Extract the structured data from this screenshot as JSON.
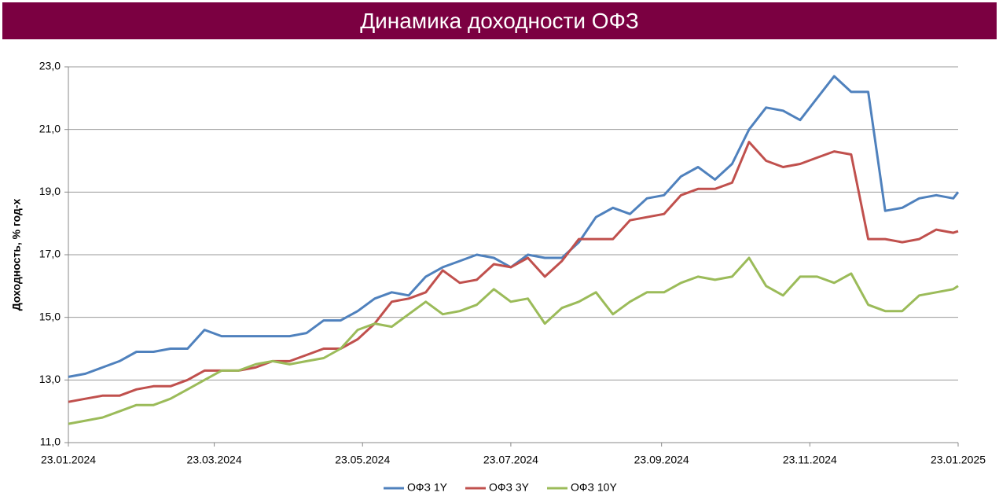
{
  "chart_data": {
    "type": "line",
    "title": "Динамика доходности ОФЗ",
    "y_label": "Доходность, % год-х",
    "x": [
      "23.01.2024",
      "30.01.2024",
      "06.02.2024",
      "13.02.2024",
      "20.02.2024",
      "27.02.2024",
      "05.03.2024",
      "12.03.2024",
      "19.03.2024",
      "26.03.2024",
      "02.04.2024",
      "09.04.2024",
      "16.04.2024",
      "23.04.2024",
      "30.04.2024",
      "07.05.2024",
      "14.05.2024",
      "21.05.2024",
      "28.05.2024",
      "04.06.2024",
      "11.06.2024",
      "18.06.2024",
      "25.06.2024",
      "02.07.2024",
      "09.07.2024",
      "16.07.2024",
      "23.07.2024",
      "30.07.2024",
      "06.08.2024",
      "13.08.2024",
      "20.08.2024",
      "27.08.2024",
      "03.09.2024",
      "10.09.2024",
      "17.09.2024",
      "24.09.2024",
      "01.10.2024",
      "08.10.2024",
      "15.10.2024",
      "22.10.2024",
      "29.10.2024",
      "05.11.2024",
      "12.11.2024",
      "19.11.2024",
      "26.11.2024",
      "03.12.2024",
      "10.12.2024",
      "17.12.2024",
      "24.12.2024",
      "31.12.2024",
      "07.01.2025",
      "14.01.2025",
      "21.01.2025",
      "23.01.2025"
    ],
    "series": [
      {
        "name": "ОФЗ 1Y",
        "color": "#4f81bd",
        "values": [
          13.1,
          13.2,
          13.4,
          13.6,
          13.9,
          13.9,
          14.0,
          14.0,
          14.6,
          14.4,
          14.4,
          14.4,
          14.4,
          14.4,
          14.5,
          14.9,
          14.9,
          15.2,
          15.6,
          15.8,
          15.7,
          16.3,
          16.6,
          16.8,
          17.0,
          16.9,
          16.6,
          17.0,
          16.9,
          16.9,
          17.4,
          18.2,
          18.5,
          18.3,
          18.8,
          18.9,
          19.5,
          19.8,
          19.4,
          19.9,
          21.0,
          21.7,
          21.6,
          21.3,
          22.0,
          22.7,
          22.2,
          22.2,
          18.4,
          18.5,
          18.8,
          18.9,
          18.8,
          19.0
        ]
      },
      {
        "name": "ОФЗ 3Y",
        "color": "#c0504d",
        "values": [
          12.3,
          12.4,
          12.5,
          12.5,
          12.7,
          12.8,
          12.8,
          13.0,
          13.3,
          13.3,
          13.3,
          13.4,
          13.6,
          13.6,
          13.8,
          14.0,
          14.0,
          14.3,
          14.8,
          15.5,
          15.6,
          15.8,
          16.5,
          16.1,
          16.2,
          16.7,
          16.6,
          16.9,
          16.3,
          16.8,
          17.5,
          17.5,
          17.5,
          18.1,
          18.2,
          18.3,
          18.9,
          19.1,
          19.1,
          19.3,
          20.6,
          20.0,
          19.8,
          19.9,
          20.1,
          20.3,
          20.2,
          17.5,
          17.5,
          17.4,
          17.5,
          17.8,
          17.7,
          17.75
        ]
      },
      {
        "name": "ОФЗ 10Y",
        "color": "#9bbb59",
        "values": [
          11.6,
          11.7,
          11.8,
          12.0,
          12.2,
          12.2,
          12.4,
          12.7,
          13.0,
          13.3,
          13.3,
          13.5,
          13.6,
          13.5,
          13.6,
          13.7,
          14.0,
          14.6,
          14.8,
          14.7,
          15.1,
          15.5,
          15.1,
          15.2,
          15.4,
          15.9,
          15.5,
          15.6,
          14.8,
          15.3,
          15.5,
          15.8,
          15.1,
          15.5,
          15.8,
          15.8,
          16.1,
          16.3,
          16.2,
          16.3,
          16.9,
          16.0,
          15.7,
          16.3,
          16.3,
          16.1,
          16.4,
          15.4,
          15.2,
          15.2,
          15.7,
          15.8,
          15.9,
          16.0
        ]
      }
    ],
    "xlim": [
      "23.01.2024",
      "23.01.2025"
    ],
    "xticks": [
      "23.01.2024",
      "23.03.2024",
      "23.05.2024",
      "23.07.2024",
      "23.09.2024",
      "23.11.2024",
      "23.01.2025"
    ],
    "ylim": [
      11,
      23
    ],
    "yticks": [
      {
        "value": 11,
        "label": "11,0"
      },
      {
        "value": 13,
        "label": "13,0"
      },
      {
        "value": 15,
        "label": "15,0"
      },
      {
        "value": 17,
        "label": "17,0"
      },
      {
        "value": 19,
        "label": "19,0"
      },
      {
        "value": 21,
        "label": "21,0"
      },
      {
        "value": 23,
        "label": "23,0"
      }
    ],
    "grid": true,
    "legend": "bottom"
  }
}
